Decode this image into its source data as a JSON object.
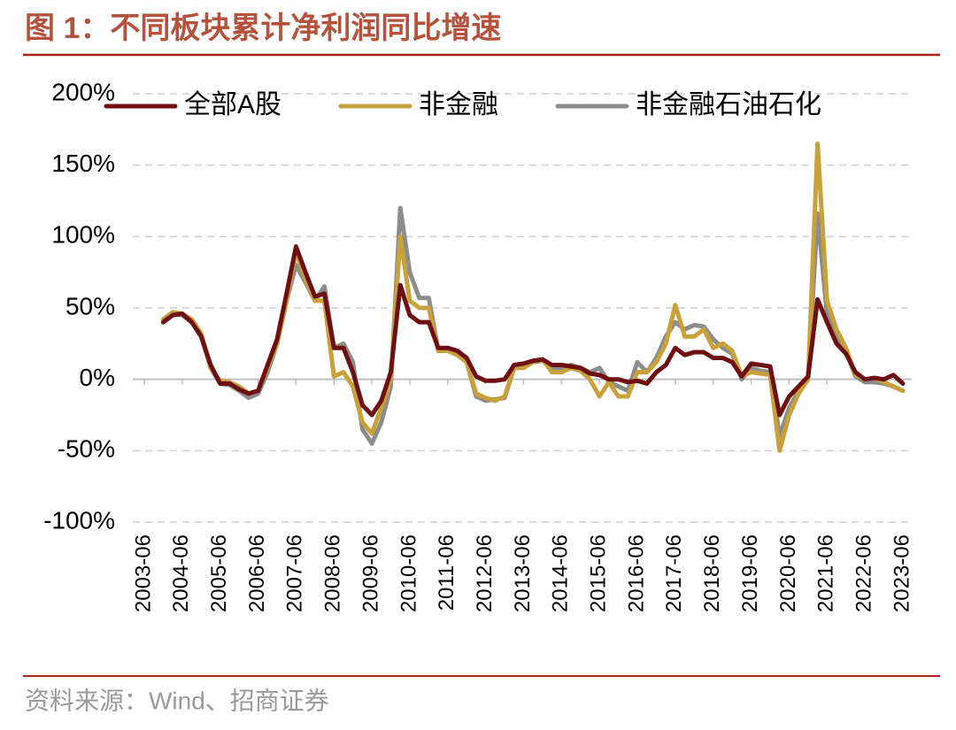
{
  "chart_data": {
    "type": "line",
    "title": "图 1：不同板块累计净利润同比增速",
    "source": "资料来源：Wind、招商证券",
    "x": [
      "2003-06",
      "2003-09",
      "2003-12",
      "2004-03",
      "2004-06",
      "2004-09",
      "2004-12",
      "2005-03",
      "2005-06",
      "2005-09",
      "2005-12",
      "2006-03",
      "2006-06",
      "2006-09",
      "2006-12",
      "2007-03",
      "2007-06",
      "2007-09",
      "2007-12",
      "2008-03",
      "2008-06",
      "2008-09",
      "2008-12",
      "2009-03",
      "2009-06",
      "2009-09",
      "2009-12",
      "2010-03",
      "2010-06",
      "2010-09",
      "2010-12",
      "2011-03",
      "2011-06",
      "2011-09",
      "2011-12",
      "2012-03",
      "2012-06",
      "2012-09",
      "2012-12",
      "2013-03",
      "2013-06",
      "2013-09",
      "2013-12",
      "2014-03",
      "2014-06",
      "2014-09",
      "2014-12",
      "2015-03",
      "2015-06",
      "2015-09",
      "2015-12",
      "2016-03",
      "2016-06",
      "2016-09",
      "2016-12",
      "2017-03",
      "2017-06",
      "2017-09",
      "2017-12",
      "2018-03",
      "2018-06",
      "2018-09",
      "2018-12",
      "2019-03",
      "2019-06",
      "2019-09",
      "2019-12",
      "2020-03",
      "2020-06",
      "2020-09",
      "2020-12",
      "2021-03",
      "2021-06",
      "2021-09",
      "2021-12",
      "2022-03",
      "2022-06",
      "2022-09",
      "2022-12",
      "2023-03",
      "2023-06"
    ],
    "series": [
      {
        "name": "全部A股",
        "color": "#6e0f12",
        "values": [
          null,
          null,
          40,
          45,
          46,
          40,
          30,
          10,
          -3,
          -3,
          -7,
          -10,
          -8,
          10,
          28,
          60,
          93,
          75,
          58,
          60,
          22,
          22,
          5,
          -18,
          -25,
          -15,
          5,
          66,
          45,
          40,
          40,
          22,
          22,
          20,
          15,
          2,
          -1,
          -1,
          0,
          10,
          11,
          13,
          14,
          10,
          10,
          9,
          8,
          4,
          3,
          0,
          0,
          -2,
          -1,
          -3,
          5,
          10,
          22,
          17,
          19,
          19,
          15,
          15,
          12,
          2,
          11,
          10,
          9,
          -25,
          -12,
          -5,
          2,
          56,
          40,
          25,
          18,
          5,
          0,
          1,
          0,
          3,
          -3
        ]
      },
      {
        "name": "非金融",
        "color": "#c9a13a",
        "values": [
          null,
          null,
          42,
          47,
          46,
          42,
          32,
          8,
          -1,
          -2,
          -5,
          -10,
          -8,
          8,
          25,
          55,
          90,
          70,
          55,
          55,
          2,
          5,
          -5,
          -30,
          -38,
          -20,
          0,
          100,
          55,
          50,
          50,
          20,
          20,
          17,
          12,
          -10,
          -13,
          -15,
          -12,
          8,
          8,
          12,
          14,
          5,
          5,
          8,
          6,
          0,
          -12,
          -2,
          -12,
          -12,
          5,
          5,
          12,
          25,
          52,
          30,
          30,
          35,
          22,
          25,
          20,
          2,
          5,
          4,
          3,
          -50,
          -25,
          -10,
          0,
          165,
          55,
          35,
          22,
          3,
          0,
          1,
          -2,
          -5,
          -8
        ]
      },
      {
        "name": "非金融石油石化",
        "color": "#8c8c8c",
        "values": [
          null,
          null,
          40,
          46,
          45,
          40,
          30,
          8,
          -3,
          -4,
          -8,
          -13,
          -10,
          5,
          25,
          55,
          80,
          68,
          55,
          65,
          22,
          25,
          12,
          -35,
          -45,
          -30,
          -5,
          120,
          75,
          57,
          57,
          20,
          20,
          18,
          12,
          -12,
          -15,
          -14,
          -13,
          8,
          10,
          12,
          13,
          8,
          8,
          10,
          8,
          5,
          8,
          -2,
          -5,
          -8,
          12,
          5,
          15,
          30,
          40,
          35,
          38,
          37,
          28,
          22,
          18,
          0,
          8,
          6,
          5,
          -40,
          -20,
          -8,
          0,
          116,
          45,
          30,
          20,
          2,
          -2,
          -2,
          -3,
          -5,
          -8
        ]
      }
    ],
    "xticks": [
      "2003-06",
      "2004-06",
      "2005-06",
      "2006-06",
      "2007-06",
      "2008-06",
      "2009-06",
      "2010-06",
      "2011-06",
      "2012-06",
      "2013-06",
      "2014-06",
      "2015-06",
      "2016-06",
      "2017-06",
      "2018-06",
      "2019-06",
      "2020-06",
      "2021-06",
      "2022-06",
      "2023-06"
    ],
    "ylim": [
      -100,
      200
    ],
    "yticks": [
      {
        "value": -100,
        "label": "-100%"
      },
      {
        "value": -50,
        "label": "-50%"
      },
      {
        "value": 0,
        "label": "0%"
      },
      {
        "value": 50,
        "label": "50%"
      },
      {
        "value": 100,
        "label": "100%"
      },
      {
        "value": 150,
        "label": "150%"
      },
      {
        "value": 200,
        "label": "200%"
      }
    ],
    "grid": true,
    "legend": "top"
  }
}
